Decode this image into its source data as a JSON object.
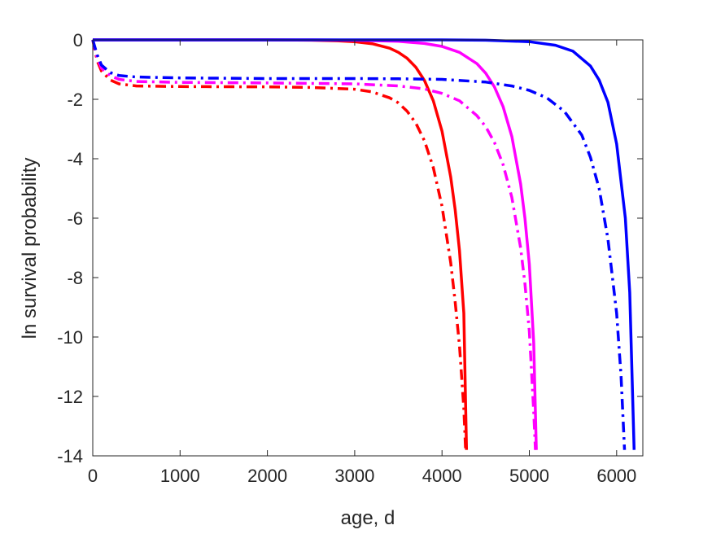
{
  "chart_data": {
    "type": "line",
    "title": "",
    "xlabel": "age, d",
    "ylabel": "ln survival probability",
    "xlim": [
      0,
      6300
    ],
    "ylim": [
      -14,
      0
    ],
    "xticks": [
      0,
      1000,
      2000,
      3000,
      4000,
      5000,
      6000
    ],
    "yticks": [
      0,
      -2,
      -4,
      -6,
      -8,
      -10,
      -12,
      -14
    ],
    "xtick_labels": [
      "0",
      "1000",
      "2000",
      "3000",
      "4000",
      "5000",
      "6000"
    ],
    "ytick_labels": [
      "0",
      "-2",
      "-4",
      "-6",
      "-8",
      "-10",
      "-12",
      "-14"
    ],
    "grid": false,
    "box": true,
    "series": [
      {
        "color": "#ff0000",
        "style": "solid",
        "x": [
          0,
          500,
          1000,
          1500,
          2000,
          2500,
          2800,
          3000,
          3200,
          3400,
          3500,
          3600,
          3700,
          3800,
          3900,
          4000,
          4100,
          4150,
          4200,
          4250,
          4280
        ],
        "y": [
          0,
          0,
          0,
          0,
          0,
          -0.01,
          -0.03,
          -0.06,
          -0.13,
          -0.28,
          -0.42,
          -0.62,
          -0.92,
          -1.37,
          -2.05,
          -3.07,
          -4.62,
          -5.7,
          -7.1,
          -9.2,
          -13.8
        ]
      },
      {
        "color": "#ff0000",
        "style": "dashdot",
        "x": [
          0,
          50,
          100,
          200,
          300,
          500,
          1000,
          2000,
          2500,
          3000,
          3200,
          3400,
          3500,
          3600,
          3700,
          3800,
          3900,
          4000,
          4100,
          4150,
          4200,
          4250,
          4270
        ],
        "y": [
          0,
          -0.7,
          -1.05,
          -1.35,
          -1.48,
          -1.55,
          -1.57,
          -1.58,
          -1.6,
          -1.66,
          -1.75,
          -1.95,
          -2.12,
          -2.4,
          -2.8,
          -3.4,
          -4.3,
          -5.6,
          -7.5,
          -8.8,
          -10.3,
          -12.4,
          -13.8
        ]
      },
      {
        "color": "#ff00ff",
        "style": "solid",
        "x": [
          0,
          1000,
          2000,
          2500,
          3000,
          3500,
          3800,
          4000,
          4200,
          4400,
          4500,
          4600,
          4700,
          4800,
          4900,
          4950,
          5000,
          5050,
          5080
        ],
        "y": [
          0,
          0,
          0,
          0,
          -0.01,
          -0.05,
          -0.12,
          -0.22,
          -0.42,
          -0.8,
          -1.12,
          -1.58,
          -2.25,
          -3.25,
          -4.85,
          -6.0,
          -7.55,
          -10.2,
          -13.8
        ]
      },
      {
        "color": "#ff00ff",
        "style": "dashdot",
        "x": [
          0,
          50,
          100,
          200,
          300,
          500,
          1000,
          2000,
          3000,
          3500,
          3800,
          4000,
          4200,
          4400,
          4500,
          4600,
          4700,
          4800,
          4900,
          4950,
          5000,
          5050,
          5070
        ],
        "y": [
          0,
          -0.6,
          -0.95,
          -1.2,
          -1.33,
          -1.4,
          -1.43,
          -1.45,
          -1.48,
          -1.55,
          -1.65,
          -1.8,
          -2.05,
          -2.55,
          -2.92,
          -3.45,
          -4.2,
          -5.3,
          -7.0,
          -8.2,
          -9.8,
          -12.5,
          -13.8
        ]
      },
      {
        "color": "#0000ff",
        "style": "solid",
        "x": [
          0,
          1000,
          2000,
          3000,
          3500,
          4000,
          4500,
          5000,
          5300,
          5500,
          5700,
          5800,
          5900,
          6000,
          6100,
          6150,
          6200
        ],
        "y": [
          0,
          0,
          0,
          0,
          0,
          0,
          -0.01,
          -0.06,
          -0.18,
          -0.38,
          -0.88,
          -1.35,
          -2.1,
          -3.5,
          -6.0,
          -8.5,
          -13.8
        ]
      },
      {
        "color": "#0000ff",
        "style": "dashdot",
        "x": [
          0,
          50,
          100,
          200,
          300,
          500,
          1000,
          2000,
          3000,
          3500,
          4000,
          4500,
          4800,
          5000,
          5200,
          5400,
          5600,
          5700,
          5800,
          5900,
          6000,
          6050,
          6090
        ],
        "y": [
          0,
          -0.5,
          -0.85,
          -1.1,
          -1.2,
          -1.25,
          -1.28,
          -1.3,
          -1.3,
          -1.31,
          -1.33,
          -1.42,
          -1.55,
          -1.7,
          -1.95,
          -2.4,
          -3.2,
          -3.95,
          -5.0,
          -6.7,
          -9.2,
          -11.3,
          -13.8
        ]
      }
    ]
  }
}
